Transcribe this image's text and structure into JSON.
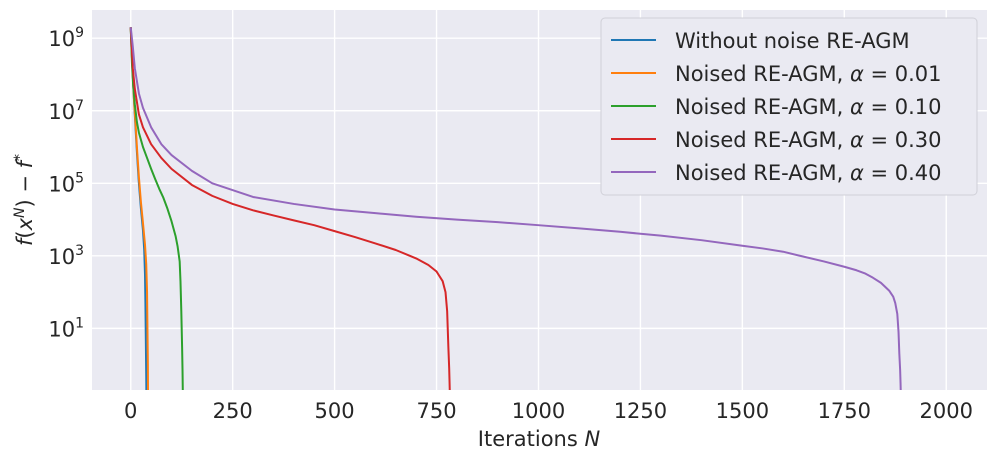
{
  "chart_data": {
    "type": "line",
    "xlabel": "Iterations N",
    "ylabel": "f(x^N) − f^*",
    "xscale": "linear",
    "yscale": "log",
    "xlim": [
      -95,
      2100
    ],
    "ylim": [
      0.2,
      6000000000
    ],
    "grid": true,
    "legend_position": "top-right",
    "x_ticks": [
      0,
      250,
      500,
      750,
      1000,
      1250,
      1500,
      1750,
      2000
    ],
    "x_tick_labels": [
      "0",
      "250",
      "500",
      "750",
      "1000",
      "1250",
      "1500",
      "1750",
      "2000"
    ],
    "y_ticks": [
      10,
      1000,
      100000,
      10000000,
      1000000000
    ],
    "y_tick_labels": [
      {
        "base": "10",
        "exp": "1"
      },
      {
        "base": "10",
        "exp": "3"
      },
      {
        "base": "10",
        "exp": "5"
      },
      {
        "base": "10",
        "exp": "7"
      },
      {
        "base": "10",
        "exp": "9"
      }
    ],
    "series": [
      {
        "name": "Without noise RE-AGM",
        "color": "#1f77b4",
        "x": [
          0,
          2,
          5,
          8,
          12,
          16,
          20,
          25,
          30,
          33,
          35,
          36,
          37,
          38,
          38.5
        ],
        "y": [
          2000000000,
          500000000,
          100000000,
          20000000,
          3000000,
          500000,
          100000,
          20000,
          5000,
          1500,
          300,
          50,
          5,
          0.5,
          0.1
        ]
      },
      {
        "name": "Noised RE-AGM, α = 0.01",
        "color": "#ff7f0e",
        "x": [
          0,
          2,
          5,
          8,
          12,
          16,
          20,
          25,
          30,
          35,
          38,
          40,
          41,
          42,
          42.5
        ],
        "y": [
          2000000000,
          500000000,
          100000000,
          20000000,
          4000000,
          700000,
          150000,
          30000,
          8000,
          2000,
          600,
          100,
          10,
          1,
          0.1
        ]
      },
      {
        "name": "Noised RE-AGM, α = 0.10",
        "color": "#2ca02c",
        "x": [
          0,
          3,
          6,
          10,
          15,
          20,
          30,
          40,
          50,
          60,
          70,
          80,
          90,
          100,
          110,
          115,
          120,
          122,
          124,
          126,
          127,
          128
        ],
        "y": [
          2000000000,
          200000000,
          50000000,
          15000000,
          5000000,
          2500000,
          1000000,
          500000,
          250000,
          130000,
          70000,
          40000,
          20000,
          9000,
          3500,
          1800,
          700,
          200,
          30,
          3,
          0.7,
          0.1
        ]
      },
      {
        "name": "Noised RE-AGM, α = 0.30",
        "color": "#d62728",
        "x": [
          0,
          5,
          10,
          20,
          30,
          50,
          75,
          100,
          150,
          200,
          250,
          300,
          350,
          400,
          450,
          500,
          550,
          600,
          650,
          700,
          730,
          750,
          765,
          772,
          776,
          779,
          781,
          782,
          783
        ],
        "y": [
          2000000000,
          150000000,
          40000000,
          8000000,
          3500000,
          1200000,
          500000,
          250000,
          90000,
          45000,
          27000,
          18000,
          13000,
          9500,
          7000,
          4800,
          3300,
          2200,
          1450,
          850,
          560,
          370,
          200,
          100,
          30,
          3,
          0.8,
          0.3,
          0.1
        ]
      },
      {
        "name": "Noised RE-AGM, α = 0.40",
        "color": "#9467bd",
        "x": [
          0,
          5,
          10,
          20,
          30,
          50,
          75,
          100,
          150,
          200,
          300,
          400,
          500,
          600,
          700,
          800,
          900,
          1000,
          1100,
          1200,
          1300,
          1400,
          1500,
          1550,
          1600,
          1650,
          1700,
          1750,
          1780,
          1800,
          1820,
          1840,
          1860,
          1870,
          1875,
          1880,
          1883,
          1885,
          1887,
          1888,
          1889
        ],
        "y": [
          2000000000,
          600000000,
          150000000,
          30000000,
          12000000,
          3500000,
          1200000,
          600000,
          220000,
          100000,
          42000,
          27000,
          19000,
          15000,
          12000,
          10000,
          8500,
          7000,
          5700,
          4600,
          3600,
          2700,
          1900,
          1600,
          1300,
          950,
          700,
          500,
          400,
          330,
          250,
          180,
          110,
          75,
          50,
          25,
          8,
          2,
          0.7,
          0.3,
          0.1
        ]
      }
    ]
  }
}
